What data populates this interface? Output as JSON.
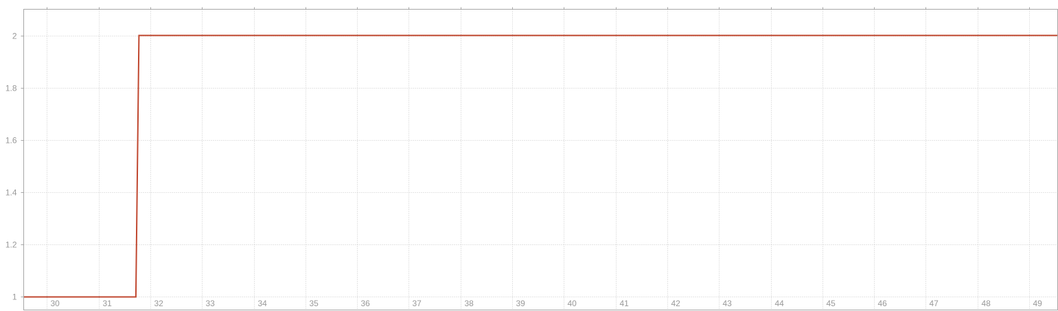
{
  "chart_data": {
    "type": "line",
    "title": "",
    "xlabel": "",
    "ylabel": "",
    "x": [
      29.55,
      31.72,
      31.78,
      49.55
    ],
    "series": [
      {
        "values": [
          1,
          1,
          2,
          2
        ],
        "color": "#c0472f"
      }
    ],
    "xlim": [
      29.55,
      49.55
    ],
    "ylim": [
      0.95,
      2.1
    ],
    "x_ticks": [
      30,
      31,
      32,
      33,
      34,
      35,
      36,
      37,
      38,
      39,
      40,
      41,
      42,
      43,
      44,
      45,
      46,
      47,
      48,
      49
    ],
    "y_ticks": [
      1,
      1.2,
      1.4,
      1.6,
      1.8,
      2
    ],
    "y_tick_labels": [
      "1",
      "1.2",
      "1.4",
      "1.6",
      "1.8",
      "2"
    ],
    "grid": true,
    "legend": "none"
  }
}
